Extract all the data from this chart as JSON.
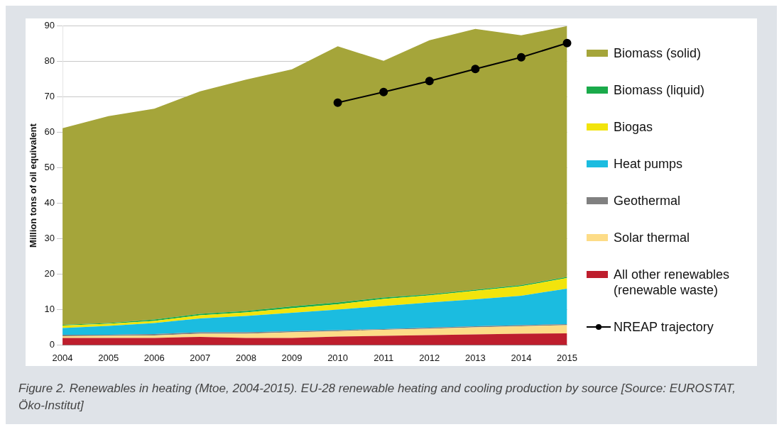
{
  "chart_data": {
    "type": "area",
    "stacked": true,
    "ylabel": "Million tons of oil equivalent",
    "categories": [
      "2004",
      "2005",
      "2006",
      "2007",
      "2008",
      "2009",
      "2010",
      "2011",
      "2012",
      "2013",
      "2014",
      "2015"
    ],
    "series": [
      {
        "name": "All other renewables (renewable waste)",
        "color": "#be1e2d",
        "values": [
          2.0,
          2.0,
          2.0,
          2.3,
          2.0,
          2.0,
          2.4,
          2.6,
          2.8,
          3.0,
          3.2,
          3.3
        ]
      },
      {
        "name": "Solar thermal",
        "color": "#fddc87",
        "values": [
          0.5,
          0.6,
          0.7,
          0.9,
          1.2,
          1.6,
          1.5,
          1.7,
          1.8,
          2.0,
          2.1,
          2.3
        ]
      },
      {
        "name": "Geothermal",
        "color": "#808080",
        "values": [
          0.4,
          0.3,
          0.4,
          0.4,
          0.4,
          0.3,
          0.3,
          0.2,
          0.3,
          0.3,
          0.3,
          0.3
        ]
      },
      {
        "name": "Heat pumps",
        "color": "#1bbce0",
        "values": [
          1.9,
          2.5,
          3.1,
          3.9,
          4.6,
          5.2,
          5.8,
          6.5,
          7.1,
          7.6,
          8.3,
          10.0
        ]
      },
      {
        "name": "Biogas",
        "color": "#f2e40c",
        "values": [
          0.7,
          0.6,
          0.6,
          0.9,
          1.0,
          1.3,
          1.5,
          2.0,
          2.0,
          2.4,
          2.7,
          3.0
        ]
      },
      {
        "name": "Biomass (liquid)",
        "color": "#1aaa4a",
        "values": [
          0.2,
          0.2,
          0.4,
          0.4,
          0.4,
          0.5,
          0.5,
          0.4,
          0.3,
          0.3,
          0.3,
          0.3
        ]
      },
      {
        "name": "Biomass (solid)",
        "color": "#a5a53a",
        "values": [
          55.5,
          58.4,
          59.5,
          62.8,
          65.3,
          66.9,
          72.3,
          66.8,
          71.7,
          73.6,
          70.5,
          70.8
        ]
      },
      {
        "name": "NREAP trajectory",
        "type": "line",
        "color": "#000000",
        "marker": "circle",
        "values": [
          null,
          null,
          null,
          null,
          null,
          null,
          68.4,
          71.4,
          74.5,
          77.9,
          81.2,
          85.2
        ]
      }
    ],
    "ylim": [
      0,
      90
    ],
    "yticks": [
      0,
      10,
      20,
      30,
      40,
      50,
      60,
      70,
      80,
      90
    ],
    "grid": "y",
    "legend": "right",
    "annotations": [
      "Figure 2. Renewables in heating (Mtoe, 2004-2015). EU-28 renewable heating and cooling production by source [Source: EUROSTAT, Öko-Institut]"
    ]
  }
}
